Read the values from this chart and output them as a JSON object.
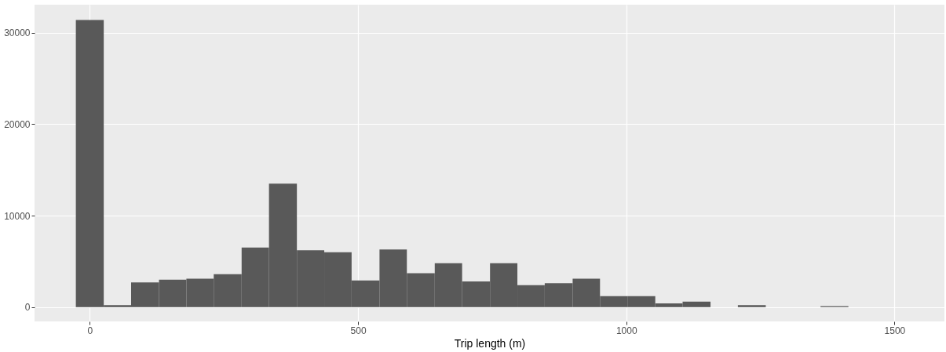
{
  "chart_data": {
    "type": "histogram",
    "xlabel": "Trip length (m)",
    "bins": [
      -26,
      26,
      77,
      129,
      180,
      231,
      283,
      334,
      386,
      437,
      488,
      540,
      591,
      643,
      694,
      746,
      797,
      848,
      900,
      951,
      1003,
      1054,
      1105,
      1157,
      1208,
      1260,
      1362,
      1414
    ],
    "values": [
      31400,
      200,
      2700,
      3000,
      3100,
      3600,
      6500,
      13500,
      6200,
      6000,
      2900,
      6300,
      3700,
      4800,
      2800,
      4800,
      2400,
      2600,
      3100,
      1200,
      1200,
      400,
      600,
      0,
      200,
      0,
      100
    ],
    "color": "#595959",
    "xlim": [
      -103,
      1593
    ],
    "xticks": [
      0,
      500,
      1000,
      1500
    ],
    "ylim": [
      -1575,
      33075
    ],
    "yticks": [
      0,
      10000,
      20000,
      30000
    ],
    "grid": true
  }
}
